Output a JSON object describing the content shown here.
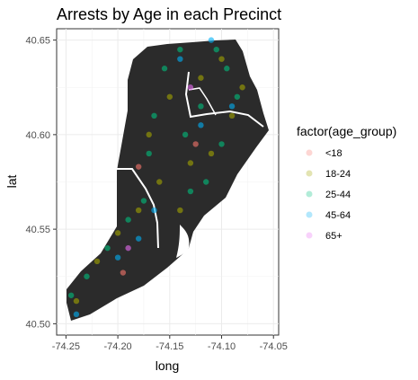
{
  "chart_data": {
    "type": "scatter",
    "title": "Arrests by Age in each Precinct",
    "xlabel": "long",
    "ylabel": "lat",
    "xlim": [
      -74.259,
      -74.045
    ],
    "ylim": [
      40.494,
      40.656
    ],
    "x_ticks": [
      "-74.25",
      "-74.20",
      "-74.15",
      "-74.10",
      "-74.05"
    ],
    "x_tick_values": [
      -74.25,
      -74.2,
      -74.15,
      -74.1,
      -74.05
    ],
    "y_ticks": [
      "40.50",
      "40.55",
      "40.60",
      "40.65"
    ],
    "y_tick_values": [
      40.5,
      40.55,
      40.6,
      40.65
    ],
    "grid": true,
    "legend_position": "right",
    "legend": {
      "title": "factor(age_group)",
      "entries": [
        {
          "label": "<18",
          "color": "#F8766D"
        },
        {
          "label": "18-24",
          "color": "#A3A500"
        },
        {
          "label": "25-44",
          "color": "#00BF7D"
        },
        {
          "label": "45-64",
          "color": "#00B0F6"
        },
        {
          "label": "65+",
          "color": "#E76BF3"
        }
      ]
    },
    "map_fill": "#2b2b2b",
    "boundary_color": "#ffffff",
    "series": [
      {
        "name": "<18",
        "x": [
          -74.195,
          -74.125,
          -74.18
        ],
        "y": [
          40.527,
          40.595,
          40.583
        ]
      },
      {
        "name": "18-24",
        "x": [
          -74.24,
          -74.22,
          -74.2,
          -74.18,
          -74.17,
          -74.15,
          -74.12,
          -74.1,
          -74.09,
          -74.08,
          -74.16,
          -74.13,
          -74.11,
          -74.14
        ],
        "y": [
          40.512,
          40.533,
          40.548,
          40.56,
          40.6,
          40.62,
          40.63,
          40.64,
          40.61,
          40.625,
          40.575,
          40.585,
          40.59,
          40.56
        ]
      },
      {
        "name": "25-44",
        "x": [
          -74.245,
          -74.23,
          -74.21,
          -74.19,
          -74.175,
          -74.165,
          -74.155,
          -74.14,
          -74.135,
          -74.12,
          -74.105,
          -74.095,
          -74.085,
          -74.1,
          -74.115,
          -74.13,
          -74.17
        ],
        "y": [
          40.515,
          40.525,
          40.54,
          40.555,
          40.565,
          40.61,
          40.635,
          40.645,
          40.6,
          40.615,
          40.645,
          40.635,
          40.62,
          40.595,
          40.575,
          40.57,
          40.59
        ]
      },
      {
        "name": "45-64",
        "x": [
          -74.24,
          -74.2,
          -74.165,
          -74.14,
          -74.11,
          -74.09,
          -74.12,
          -74.18
        ],
        "y": [
          40.505,
          40.535,
          40.56,
          40.64,
          40.65,
          40.615,
          40.605,
          40.545
        ]
      },
      {
        "name": "65+",
        "x": [
          -74.19,
          -74.13
        ],
        "y": [
          40.54,
          40.625
        ]
      }
    ]
  }
}
